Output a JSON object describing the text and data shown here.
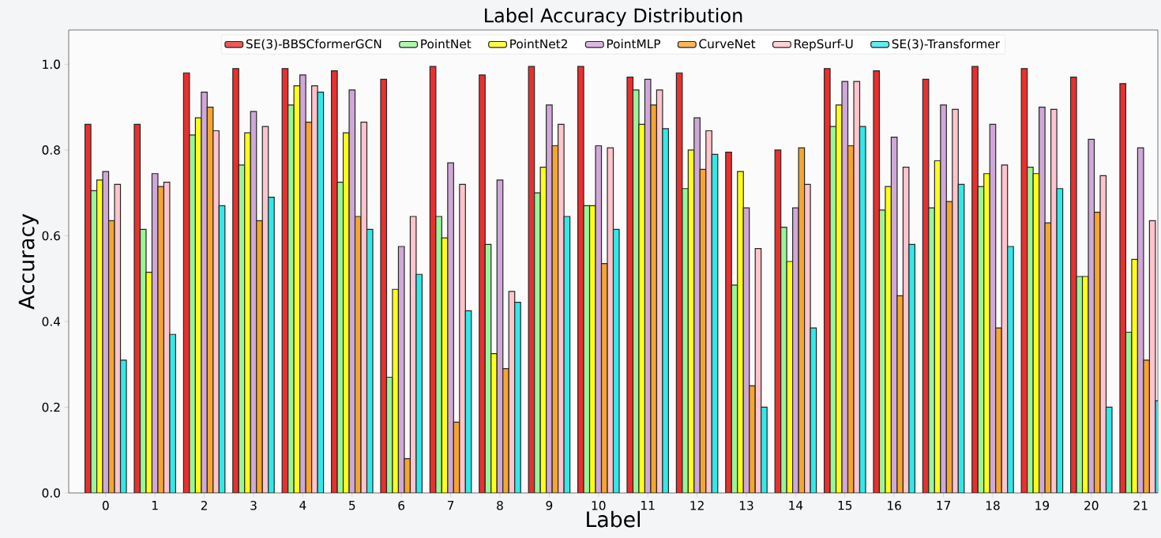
{
  "chart_data": {
    "type": "bar",
    "title": "Label Accuracy Distribution",
    "xlabel": "Label",
    "ylabel": "Accuracy",
    "categories": [
      "0",
      "1",
      "2",
      "3",
      "4",
      "5",
      "6",
      "7",
      "8",
      "9",
      "10",
      "11",
      "12",
      "13",
      "14",
      "15",
      "16",
      "17",
      "18",
      "19",
      "20",
      "21"
    ],
    "series": [
      {
        "name": "SE(3)-BBSCformerGCN",
        "color": "#e8302e",
        "values": [
          0.86,
          0.86,
          0.98,
          0.99,
          0.99,
          0.985,
          0.965,
          0.995,
          0.975,
          0.995,
          0.995,
          0.97,
          0.98,
          0.795,
          0.8,
          0.99,
          0.985,
          0.965,
          0.995,
          0.99,
          0.97,
          0.955
        ]
      },
      {
        "name": "PointNet",
        "color": "#98f598",
        "values": [
          0.705,
          0.615,
          0.835,
          0.765,
          0.905,
          0.725,
          0.27,
          0.645,
          0.58,
          0.7,
          0.67,
          0.94,
          0.71,
          0.485,
          0.62,
          0.855,
          0.66,
          0.665,
          0.715,
          0.76,
          0.505,
          0.375
        ]
      },
      {
        "name": "PointNet2",
        "color": "#ffff1a",
        "values": [
          0.73,
          0.515,
          0.875,
          0.84,
          0.95,
          0.84,
          0.475,
          0.595,
          0.325,
          0.76,
          0.67,
          0.86,
          0.8,
          0.75,
          0.54,
          0.905,
          0.715,
          0.775,
          0.745,
          0.745,
          0.505,
          0.545
        ]
      },
      {
        "name": "PointMLP",
        "color": "#cfa8d8",
        "values": [
          0.75,
          0.745,
          0.935,
          0.89,
          0.975,
          0.94,
          0.575,
          0.77,
          0.73,
          0.905,
          0.81,
          0.965,
          0.875,
          0.665,
          0.665,
          0.96,
          0.83,
          0.905,
          0.86,
          0.9,
          0.825,
          0.805
        ]
      },
      {
        "name": "CurveNet",
        "color": "#f5a530",
        "values": [
          0.635,
          0.715,
          0.9,
          0.635,
          0.865,
          0.645,
          0.08,
          0.165,
          0.29,
          0.81,
          0.535,
          0.905,
          0.755,
          0.25,
          0.805,
          0.81,
          0.46,
          0.68,
          0.385,
          0.63,
          0.655,
          0.31
        ]
      },
      {
        "name": "RepSurf-U",
        "color": "#ffc4cc",
        "values": [
          0.72,
          0.725,
          0.845,
          0.855,
          0.95,
          0.865,
          0.645,
          0.72,
          0.47,
          0.86,
          0.805,
          0.94,
          0.845,
          0.57,
          0.72,
          0.96,
          0.76,
          0.895,
          0.765,
          0.895,
          0.74,
          0.635
        ]
      },
      {
        "name": "SE(3)-Transformer",
        "color": "#33e8e8",
        "values": [
          0.31,
          0.37,
          0.67,
          0.69,
          0.935,
          0.615,
          0.51,
          0.425,
          0.445,
          0.645,
          0.615,
          0.85,
          0.79,
          0.2,
          0.385,
          0.855,
          0.58,
          0.72,
          0.575,
          0.71,
          0.2,
          0.215
        ]
      }
    ],
    "ylim": [
      0,
      1.08
    ],
    "yticks": [
      {
        "value": 0,
        "label": "0.0"
      },
      {
        "value": 0.2,
        "label": "0.2"
      },
      {
        "value": 0.4,
        "label": "0.4"
      },
      {
        "value": 0.6,
        "label": "0.6"
      },
      {
        "value": 0.8,
        "label": "0.8"
      },
      {
        "value": 1.0,
        "label": "1.0"
      }
    ],
    "legend": "top"
  }
}
